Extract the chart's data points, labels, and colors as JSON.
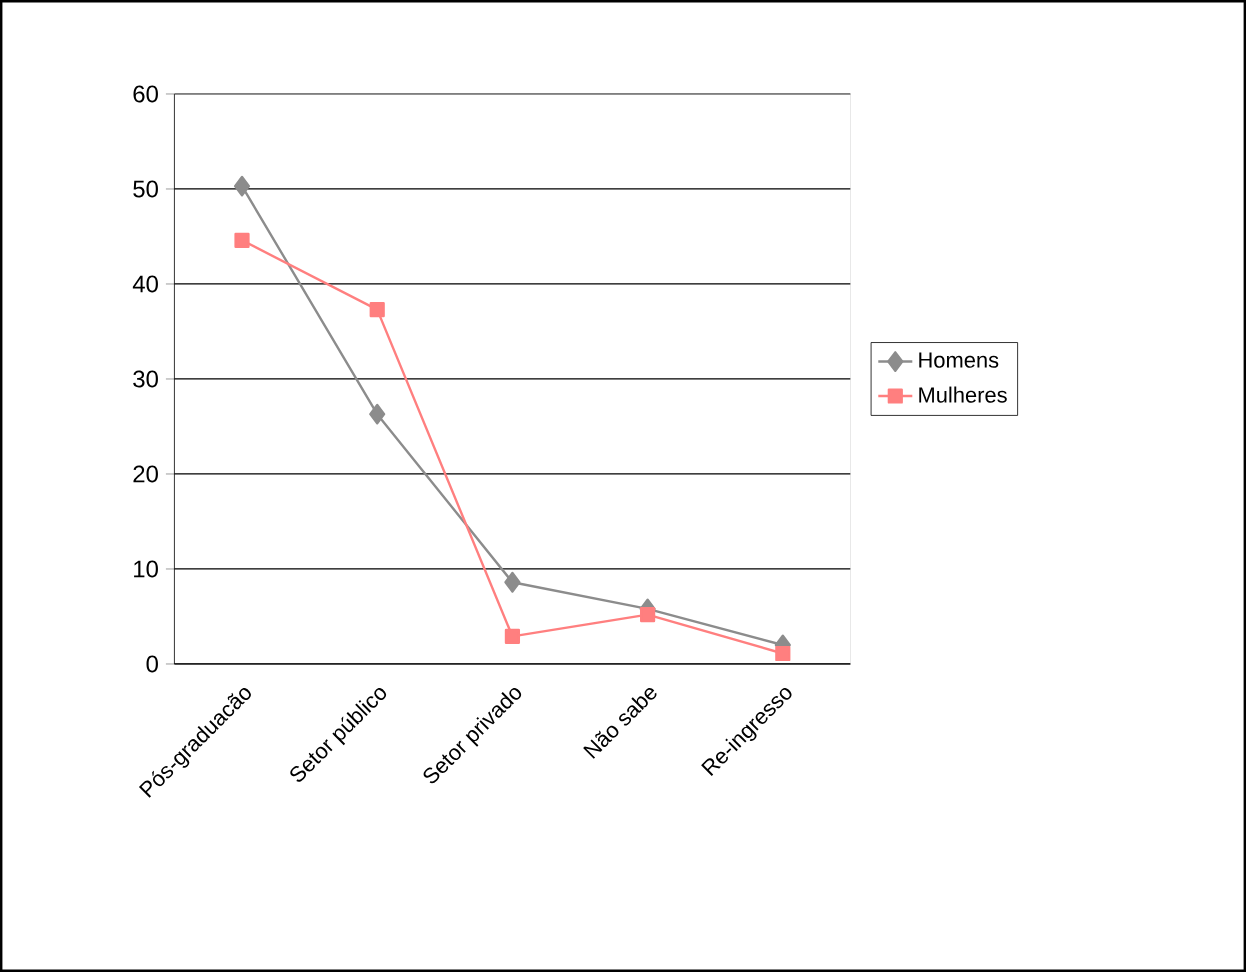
{
  "chart_data": {
    "type": "line",
    "categories": [
      "Pós-graduacão",
      "Setor público",
      "Setor privado",
      "Não sabe",
      "Re-ingresso"
    ],
    "series": [
      {
        "name": "Homens",
        "color": "#8c8c8c",
        "marker": "diamond",
        "values": [
          50.3,
          26.3,
          8.6,
          5.8,
          2.0
        ]
      },
      {
        "name": "Mulheres",
        "color": "#ff7f7f",
        "marker": "square",
        "values": [
          44.6,
          37.3,
          2.9,
          5.2,
          1.1
        ]
      }
    ],
    "ylim": [
      0,
      60
    ],
    "yticks": [
      0,
      10,
      20,
      30,
      40,
      50,
      60
    ],
    "grid": "y",
    "legend": "right",
    "line_style": "solid"
  }
}
